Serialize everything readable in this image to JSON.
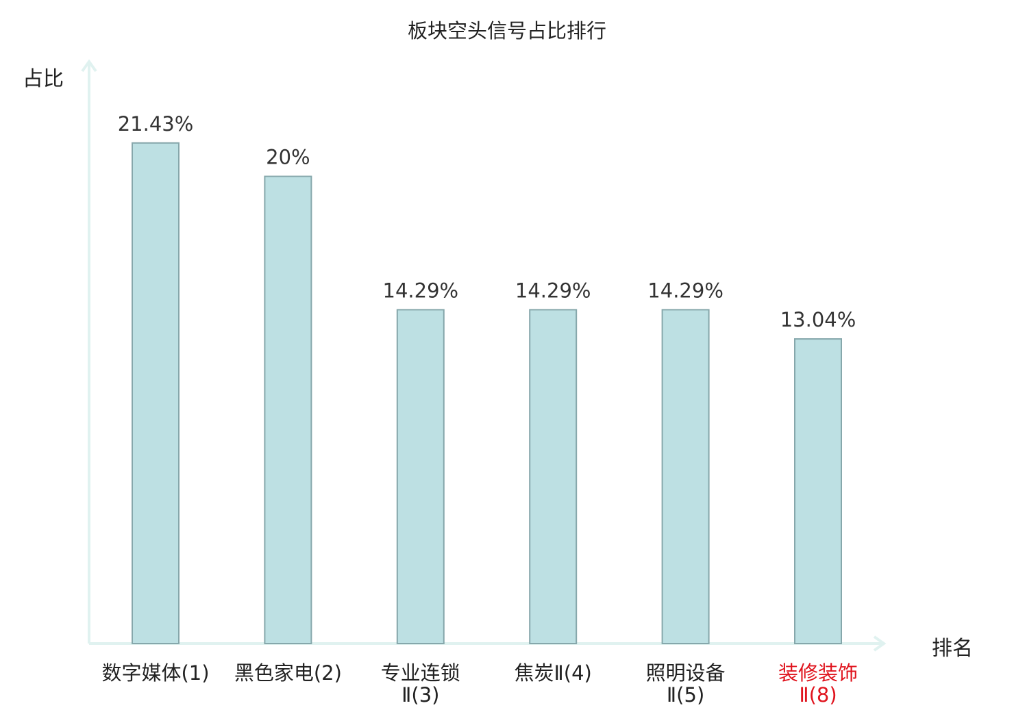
{
  "chart_data": {
    "type": "bar",
    "title": "板块空头信号占比排行",
    "xlabel": "排名",
    "ylabel": "占比",
    "categories": [
      {
        "line1": "数字媒体(1)",
        "line2": "",
        "highlight": false
      },
      {
        "line1": "黑色家电(2)",
        "line2": "",
        "highlight": false
      },
      {
        "line1": "专业连锁",
        "line2": "Ⅱ(3)",
        "highlight": false
      },
      {
        "line1": "焦炭Ⅱ(4)",
        "line2": "",
        "highlight": false
      },
      {
        "line1": "照明设备",
        "line2": "Ⅱ(5)",
        "highlight": false
      },
      {
        "line1": "装修装饰",
        "line2": "Ⅱ(8)",
        "highlight": true
      }
    ],
    "values": [
      21.43,
      20,
      14.29,
      14.29,
      14.29,
      13.04
    ],
    "value_labels": [
      "21.43%",
      "20%",
      "14.29%",
      "14.29%",
      "14.29%",
      "13.04%"
    ],
    "ylim": [
      0,
      25
    ],
    "grid": false,
    "legend": "none",
    "colors": {
      "bar_fill": "#bde0e3",
      "bar_stroke": "#86a7ab",
      "axis": "#e0f2f0",
      "value_label": "#333333",
      "category_label": "#222222",
      "highlight_label": "#e0141e"
    }
  }
}
